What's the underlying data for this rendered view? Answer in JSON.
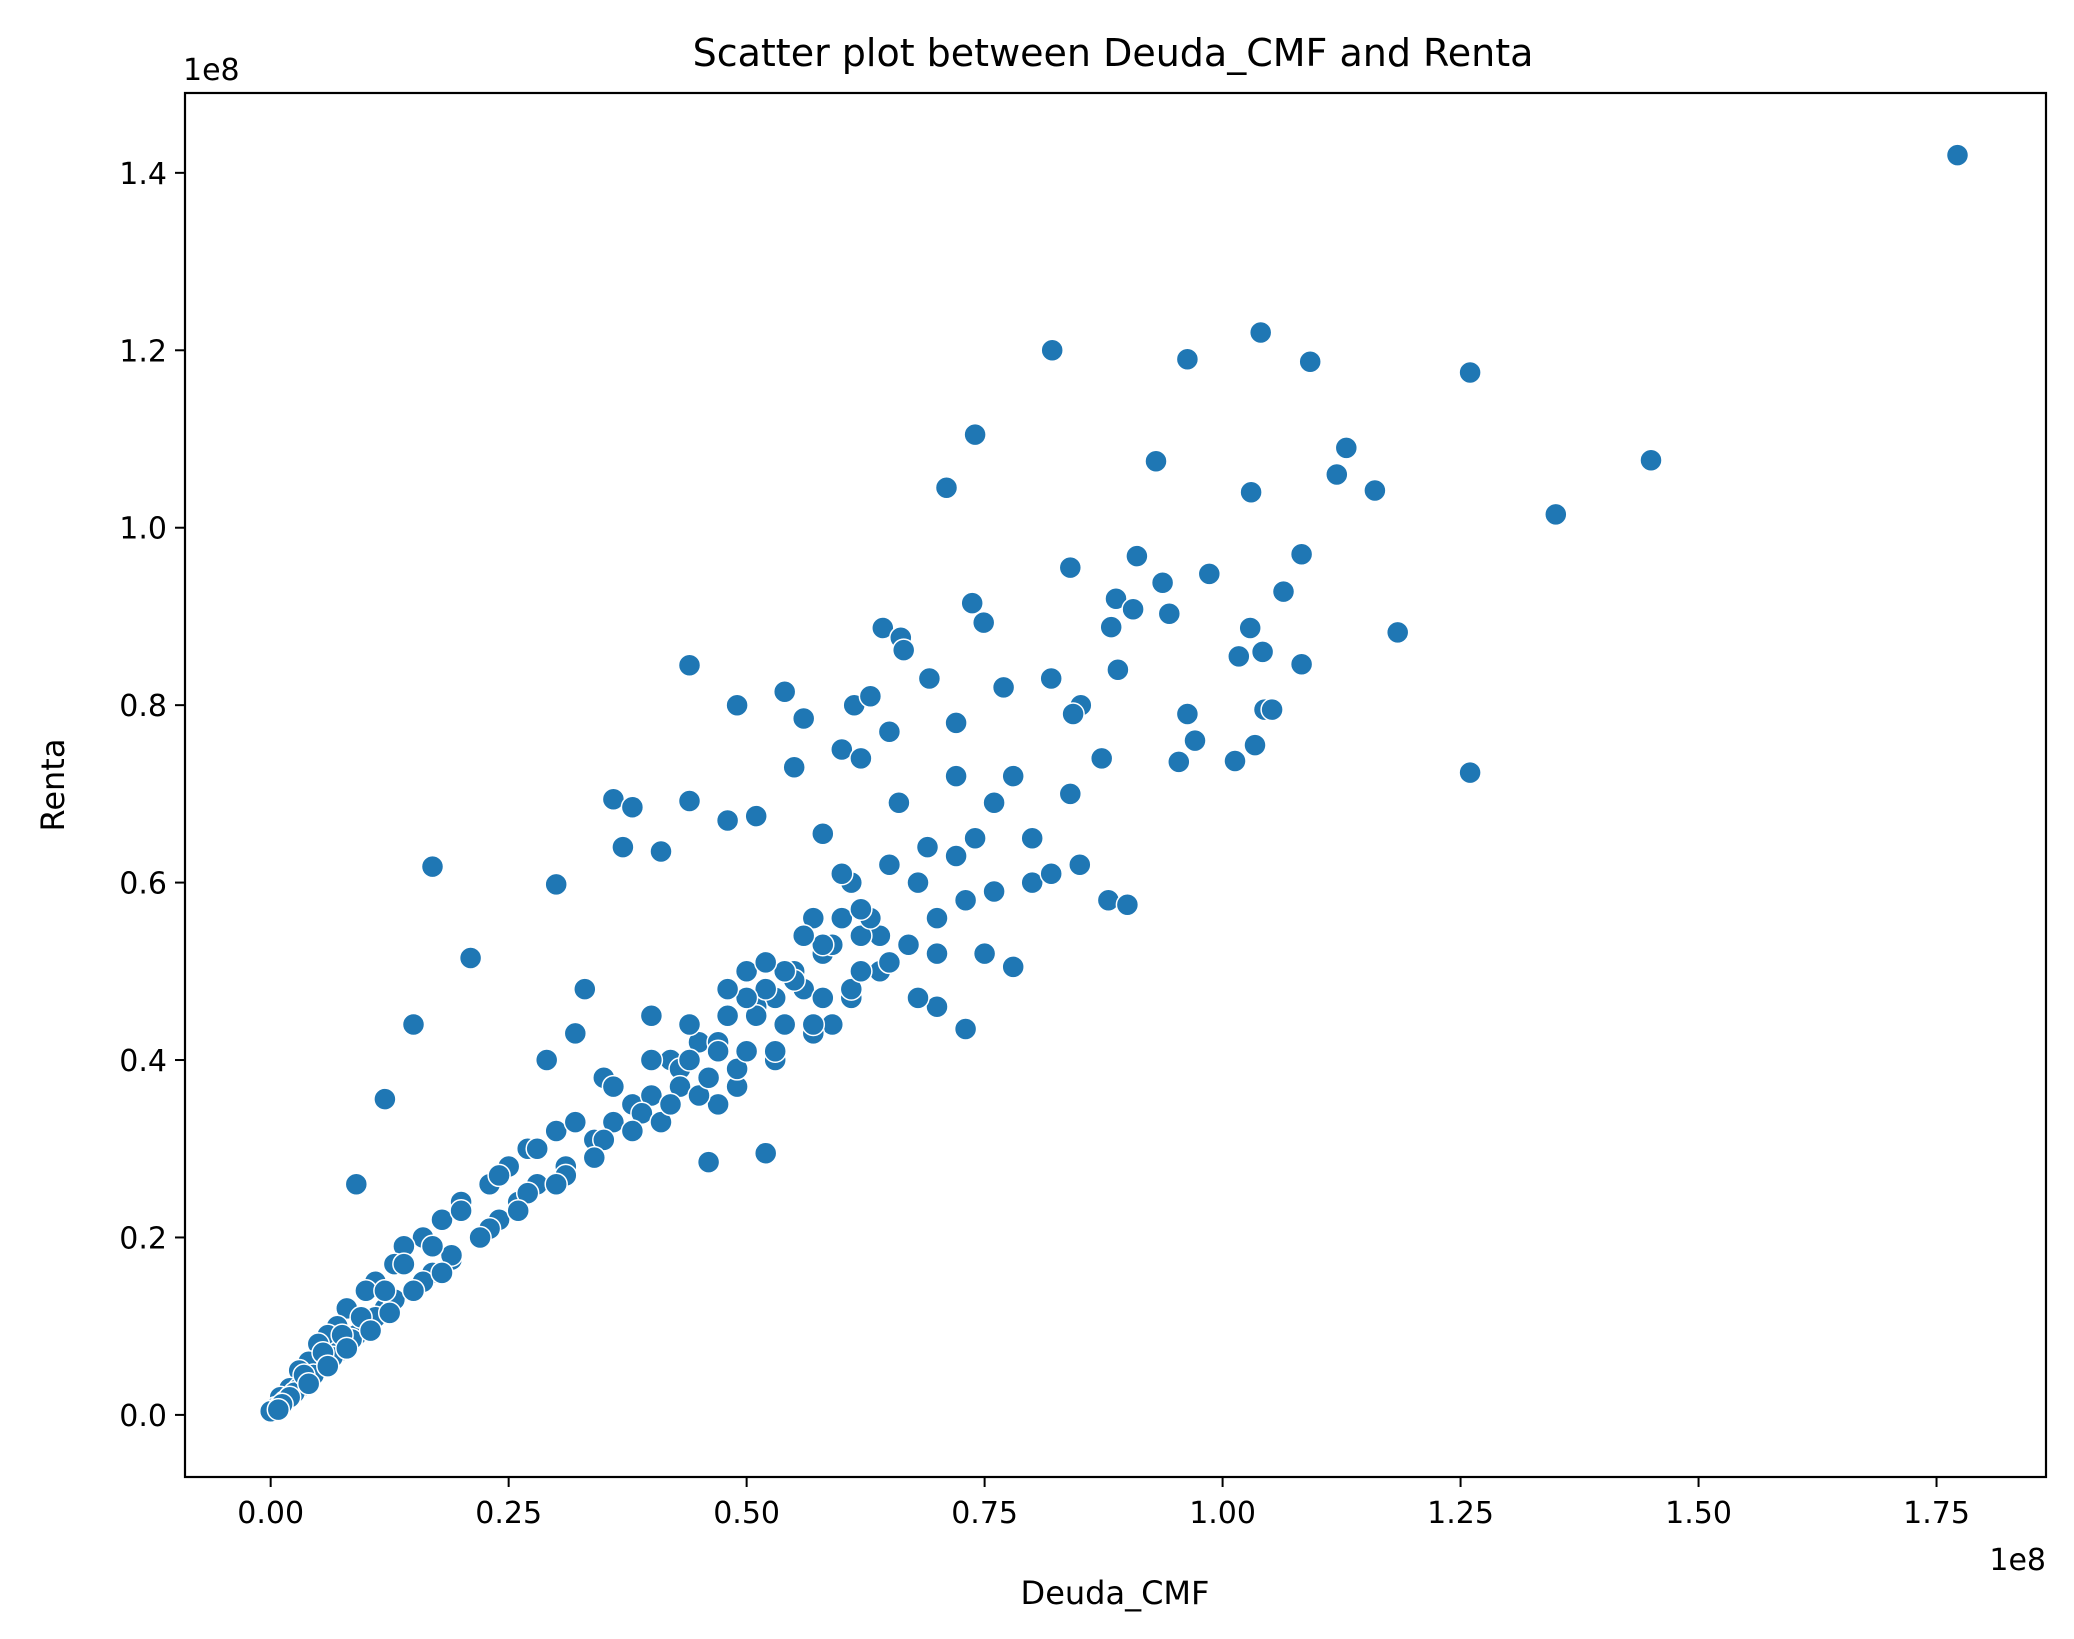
{
  "chart_data": {
    "type": "scatter",
    "title": "Scatter plot between Deuda_CMF and Renta",
    "xlabel": "Deuda_CMF",
    "ylabel": "Renta",
    "x_offset_label": "1e8",
    "y_offset_label": "1e8",
    "xlim": [
      -0.09,
      1.865
    ],
    "ylim": [
      -0.07,
      1.49
    ],
    "x_ticks": [
      {
        "value": 0.0,
        "label": "0.00"
      },
      {
        "value": 0.25,
        "label": "0.25"
      },
      {
        "value": 0.5,
        "label": "0.50"
      },
      {
        "value": 0.75,
        "label": "0.75"
      },
      {
        "value": 1.0,
        "label": "1.00"
      },
      {
        "value": 1.25,
        "label": "1.25"
      },
      {
        "value": 1.5,
        "label": "1.50"
      },
      {
        "value": 1.75,
        "label": "1.75"
      }
    ],
    "y_ticks": [
      {
        "value": 0.0,
        "label": "0.0"
      },
      {
        "value": 0.2,
        "label": "0.2"
      },
      {
        "value": 0.4,
        "label": "0.4"
      },
      {
        "value": 0.6,
        "label": "0.6"
      },
      {
        "value": 0.8,
        "label": "0.8"
      },
      {
        "value": 1.0,
        "label": "1.0"
      },
      {
        "value": 1.2,
        "label": "1.2"
      },
      {
        "value": 1.4,
        "label": "1.4"
      }
    ],
    "grid": false,
    "marker_color": "#1f77b4",
    "marker_edge_color": "#ffffff",
    "series": [
      {
        "x": [
          1.772,
          1.04,
          0.821,
          0.963,
          1.092,
          1.26,
          0.74,
          1.13,
          0.93,
          1.45,
          0.71,
          1.03,
          1.12,
          1.16,
          1.35,
          0.91,
          1.083,
          0.986,
          0.84,
          0.737,
          0.749,
          0.883,
          0.944,
          1.029,
          0.888,
          1.042,
          1.064,
          1.184,
          0.643,
          0.662,
          0.665,
          0.44,
          0.82,
          0.851,
          0.77,
          0.72,
          0.692,
          0.613,
          0.54,
          0.49,
          1.044,
          1.017,
          1.083,
          1.26,
          0.873,
          0.963,
          0.971,
          1.034,
          1.052,
          0.937,
          0.954,
          0.906,
          0.89,
          0.843,
          1.013,
          0.36,
          0.38,
          0.44,
          0.17,
          0.21,
          0.12,
          0.41,
          0.56,
          0.3,
          0.37,
          0.48,
          0.63,
          0.15,
          0.09,
          0.78,
          0.73,
          0.7,
          0.68,
          0.75,
          0.8,
          0.82,
          0.85,
          0.88,
          0.9,
          0.6,
          0.62,
          0.65,
          0.55,
          0.51,
          0.58,
          0.52,
          0.46,
          0.5,
          0.6,
          0.64,
          0.7,
          0.76,
          0.8,
          0.66,
          0.72,
          0.68,
          0.74,
          0.78,
          0.84,
          0.76,
          0.72,
          0.62,
          0.56,
          0.59,
          0.53,
          0.45,
          0.42,
          0.4,
          0.33,
          0.32,
          0.29,
          0.35,
          0.38,
          0.3,
          0.27,
          0.25,
          0.23,
          0.2,
          0.18,
          0.16,
          0.14,
          0.13,
          0.11,
          0.1,
          0.08,
          0.07,
          0.06,
          0.05,
          0.04,
          0.03,
          0.02,
          0.01,
          0.005,
          0.0,
          0.43,
          0.47,
          0.51,
          0.55,
          0.57,
          0.61,
          0.65,
          0.69,
          0.58,
          0.52,
          0.48,
          0.44,
          0.4,
          0.36,
          0.34,
          0.31,
          0.28,
          0.26,
          0.24,
          0.22,
          0.19,
          0.17,
          0.15,
          0.12,
          0.1,
          0.09,
          0.07,
          0.06,
          0.04,
          0.03,
          0.02,
          0.015,
          0.01,
          0.47,
          0.49,
          0.53,
          0.57,
          0.61,
          0.64,
          0.67,
          0.7,
          0.73,
          0.63,
          0.59,
          0.55,
          0.51,
          0.47,
          0.43,
          0.39,
          0.35,
          0.31,
          0.27,
          0.23,
          0.19,
          0.16,
          0.13,
          0.11,
          0.085,
          0.065,
          0.045,
          0.025,
          0.5,
          0.54,
          0.58,
          0.62,
          0.6,
          0.56,
          0.52,
          0.48,
          0.44,
          0.4,
          0.36,
          0.32,
          0.28,
          0.24,
          0.2,
          0.17,
          0.14,
          0.12,
          0.095,
          0.075,
          0.055,
          0.035,
          0.41,
          0.45,
          0.49,
          0.53,
          0.57,
          0.61,
          0.65,
          0.62,
          0.58,
          0.54,
          0.5,
          0.46,
          0.42,
          0.38,
          0.34,
          0.3,
          0.26,
          0.22,
          0.18,
          0.15,
          0.125,
          0.105,
          0.08,
          0.06,
          0.04,
          0.02,
          0.012,
          0.008
        ],
        "y": [
          1.42,
          1.22,
          1.2,
          1.19,
          1.187,
          1.175,
          1.105,
          1.09,
          1.075,
          1.076,
          1.045,
          1.04,
          1.06,
          1.042,
          1.015,
          0.968,
          0.97,
          0.948,
          0.955,
          0.915,
          0.893,
          0.888,
          0.903,
          0.887,
          0.92,
          0.86,
          0.928,
          0.882,
          0.887,
          0.876,
          0.862,
          0.845,
          0.83,
          0.8,
          0.82,
          0.78,
          0.83,
          0.8,
          0.815,
          0.8,
          0.795,
          0.855,
          0.846,
          0.724,
          0.74,
          0.79,
          0.76,
          0.755,
          0.795,
          0.938,
          0.736,
          0.908,
          0.84,
          0.79,
          0.737,
          0.694,
          0.685,
          0.692,
          0.618,
          0.515,
          0.356,
          0.635,
          0.785,
          0.598,
          0.64,
          0.67,
          0.81,
          0.44,
          0.26,
          0.505,
          0.435,
          0.46,
          0.47,
          0.52,
          0.6,
          0.61,
          0.62,
          0.58,
          0.575,
          0.75,
          0.74,
          0.77,
          0.73,
          0.675,
          0.655,
          0.295,
          0.285,
          0.5,
          0.56,
          0.54,
          0.52,
          0.59,
          0.65,
          0.69,
          0.72,
          0.6,
          0.65,
          0.72,
          0.7,
          0.69,
          0.63,
          0.54,
          0.48,
          0.44,
          0.47,
          0.42,
          0.4,
          0.45,
          0.48,
          0.43,
          0.4,
          0.38,
          0.35,
          0.32,
          0.3,
          0.28,
          0.26,
          0.24,
          0.22,
          0.2,
          0.19,
          0.17,
          0.15,
          0.14,
          0.12,
          0.1,
          0.09,
          0.08,
          0.06,
          0.05,
          0.03,
          0.02,
          0.008,
          0.004,
          0.39,
          0.42,
          0.46,
          0.5,
          0.56,
          0.6,
          0.62,
          0.64,
          0.52,
          0.48,
          0.45,
          0.4,
          0.36,
          0.33,
          0.31,
          0.28,
          0.26,
          0.24,
          0.22,
          0.2,
          0.175,
          0.16,
          0.14,
          0.12,
          0.1,
          0.09,
          0.07,
          0.06,
          0.04,
          0.03,
          0.02,
          0.015,
          0.01,
          0.35,
          0.37,
          0.4,
          0.43,
          0.47,
          0.5,
          0.53,
          0.56,
          0.58,
          0.56,
          0.53,
          0.49,
          0.45,
          0.41,
          0.37,
          0.34,
          0.31,
          0.27,
          0.25,
          0.21,
          0.18,
          0.15,
          0.13,
          0.11,
          0.085,
          0.065,
          0.045,
          0.025,
          0.47,
          0.5,
          0.53,
          0.57,
          0.61,
          0.54,
          0.51,
          0.48,
          0.44,
          0.4,
          0.37,
          0.33,
          0.3,
          0.27,
          0.23,
          0.19,
          0.17,
          0.14,
          0.11,
          0.09,
          0.07,
          0.045,
          0.33,
          0.36,
          0.39,
          0.41,
          0.44,
          0.48,
          0.51,
          0.5,
          0.47,
          0.44,
          0.41,
          0.38,
          0.35,
          0.32,
          0.29,
          0.26,
          0.23,
          0.2,
          0.16,
          0.14,
          0.115,
          0.095,
          0.075,
          0.055,
          0.035,
          0.02,
          0.012,
          0.006
        ]
      }
    ]
  }
}
